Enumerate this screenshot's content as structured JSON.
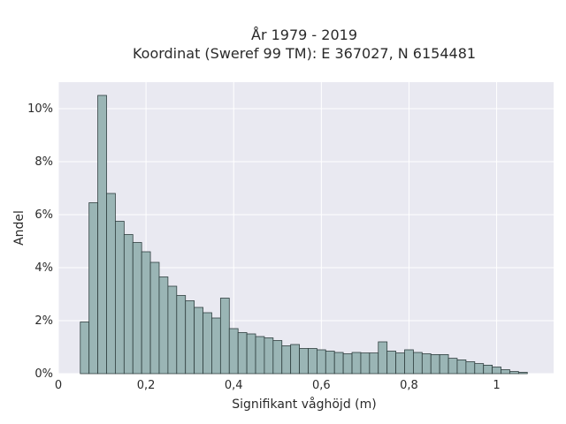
{
  "chart_data": {
    "type": "bar",
    "title_line1": "År 1979 - 2019",
    "title_line2": "Koordinat (Sweref 99 TM): E 367027, N 6154481",
    "xlabel": "Signifikant våghöjd (m)",
    "ylabel": "Andel",
    "xlim": [
      0,
      1.13
    ],
    "ylim": [
      0,
      11
    ],
    "x_ticks": [
      {
        "value": 0,
        "label": "0"
      },
      {
        "value": 0.2,
        "label": "0,2"
      },
      {
        "value": 0.4,
        "label": "0,4"
      },
      {
        "value": 0.6,
        "label": "0,6"
      },
      {
        "value": 0.8,
        "label": "0,8"
      },
      {
        "value": 1,
        "label": "1"
      }
    ],
    "y_ticks": [
      {
        "value": 0,
        "label": "0%"
      },
      {
        "value": 2,
        "label": "2%"
      },
      {
        "value": 4,
        "label": "4%"
      },
      {
        "value": 6,
        "label": "6%"
      },
      {
        "value": 8,
        "label": "8%"
      },
      {
        "value": 10,
        "label": "10%"
      }
    ],
    "bin_start": 0.05,
    "bin_width": 0.02,
    "values": [
      1.95,
      6.45,
      10.5,
      6.8,
      5.75,
      5.25,
      4.95,
      4.6,
      4.2,
      3.65,
      3.3,
      2.95,
      2.75,
      2.5,
      2.3,
      2.1,
      2.85,
      1.7,
      1.55,
      1.5,
      1.4,
      1.35,
      1.25,
      1.05,
      1.1,
      0.95,
      0.95,
      0.9,
      0.85,
      0.8,
      0.75,
      0.8,
      0.78,
      0.78,
      1.2,
      0.85,
      0.78,
      0.9,
      0.8,
      0.75,
      0.72,
      0.72,
      0.58,
      0.52,
      0.45,
      0.38,
      0.32,
      0.25,
      0.15,
      0.08,
      0.05
    ],
    "colors": {
      "bar_fill": "#9ab5b5",
      "bar_edge": "#2f3f3f",
      "plot_bg": "#e9e9f1",
      "grid": "#ffffff"
    }
  }
}
